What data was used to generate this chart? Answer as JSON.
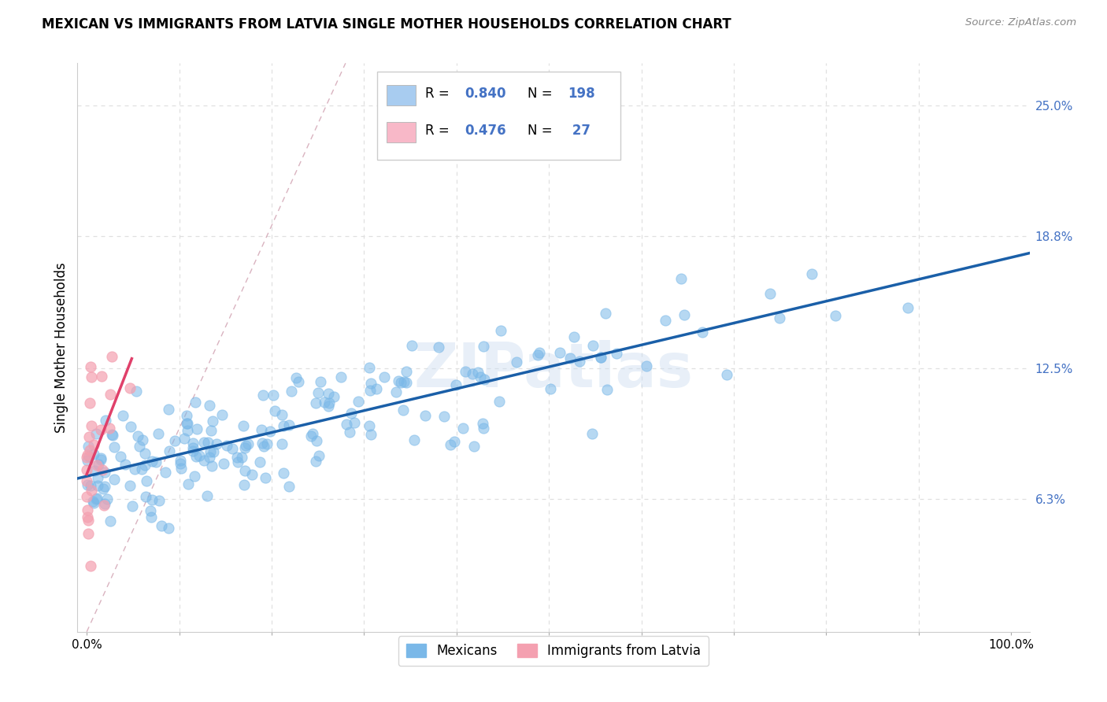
{
  "title": "MEXICAN VS IMMIGRANTS FROM LATVIA SINGLE MOTHER HOUSEHOLDS CORRELATION CHART",
  "source": "Source: ZipAtlas.com",
  "ylabel": "Single Mother Households",
  "xlim": [
    -0.01,
    1.02
  ],
  "ylim": [
    0.0,
    0.27
  ],
  "xticks": [
    0.0,
    0.1,
    0.2,
    0.3,
    0.4,
    0.5,
    0.6,
    0.7,
    0.8,
    0.9,
    1.0
  ],
  "xtick_labels": [
    "0.0%",
    "",
    "",
    "",
    "",
    "",
    "",
    "",
    "",
    "",
    "100.0%"
  ],
  "ytick_positions": [
    0.063,
    0.125,
    0.188,
    0.25
  ],
  "ytick_labels": [
    "6.3%",
    "12.5%",
    "18.8%",
    "25.0%"
  ],
  "series1_name": "Mexicans",
  "series2_name": "Immigrants from Latvia",
  "series1_color": "#7ab8e8",
  "series2_color": "#f4a0b0",
  "series1_line_color": "#1a5fa8",
  "series2_line_color": "#e0406a",
  "diagonal_color": "#d0a0b0",
  "background_color": "#ffffff",
  "grid_color": "#e0e0e0",
  "watermark": "ZIPatlas",
  "R1": 0.84,
  "N1": 198,
  "R2": 0.476,
  "N2": 27,
  "legend_r1": "0.840",
  "legend_n1": "198",
  "legend_r2": "0.476",
  "legend_n2": " 27",
  "legend_color1": "#a8ccf0",
  "legend_color2": "#f8b8c8",
  "legend_text_color": "#4472c4",
  "title_fontsize": 12,
  "axis_fontsize": 11
}
